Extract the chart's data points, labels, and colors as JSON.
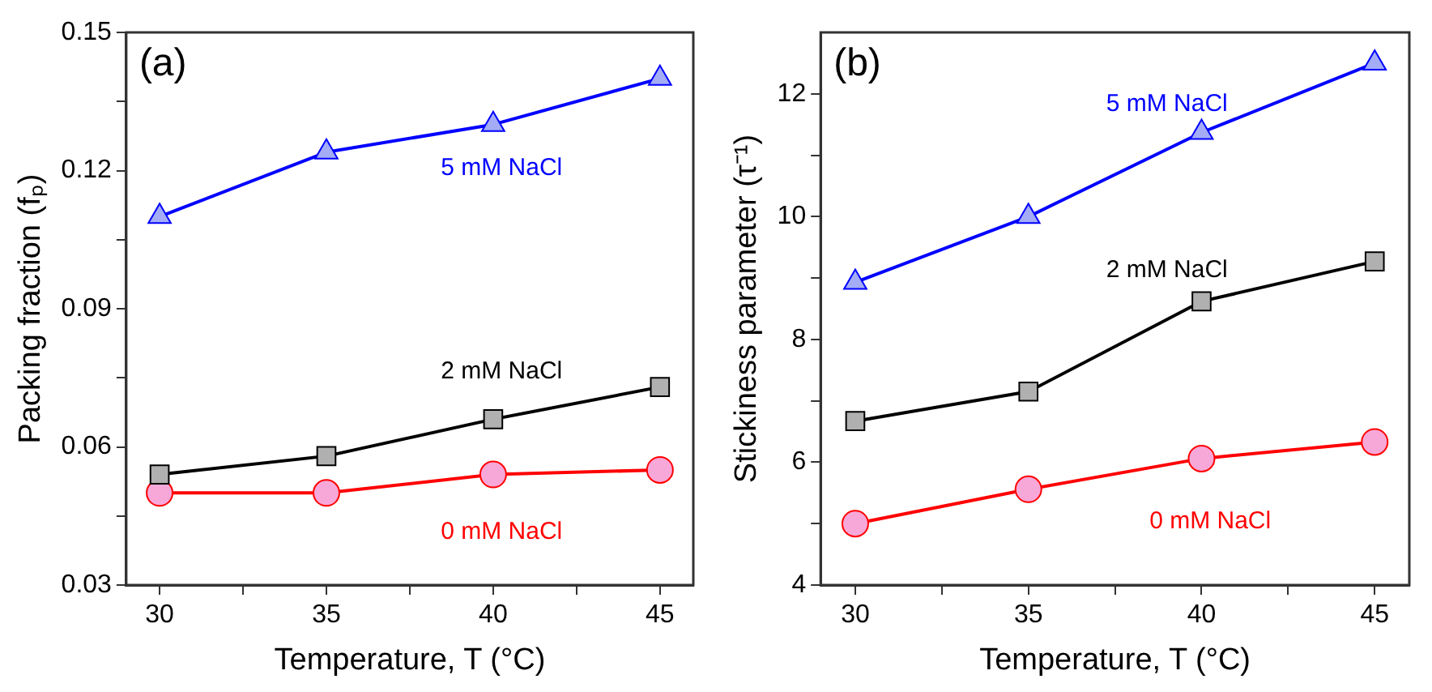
{
  "chart_data": [
    {
      "type": "line",
      "xlabel": "Temperature, T (°C)",
      "ylabel": "Packing fraction (fₚ)",
      "annotations": [
        "(a)"
      ],
      "legend": false,
      "grid": false,
      "x": [
        30,
        35,
        40,
        45
      ],
      "xlim": [
        29,
        46
      ],
      "xticks": [
        30,
        {
          "value": 32.5,
          "label": null
        },
        35,
        {
          "value": 37.5,
          "label": null
        },
        40,
        {
          "value": 42.5,
          "label": null
        },
        45
      ],
      "ylim": [
        0.03,
        0.15
      ],
      "yticks": [
        {
          "value": 0.03,
          "label": "0.03"
        },
        {
          "value": 0.045,
          "label": null
        },
        {
          "value": 0.06,
          "label": "0.06"
        },
        {
          "value": 0.075,
          "label": null
        },
        {
          "value": 0.09,
          "label": "0.09"
        },
        {
          "value": 0.105,
          "label": null
        },
        {
          "value": 0.12,
          "label": "0.12"
        },
        {
          "value": 0.135,
          "label": null
        },
        {
          "value": 0.15,
          "label": "0.15"
        }
      ],
      "series": [
        {
          "name": "5 mM NaCl",
          "color": "#0000ff",
          "marker": "triangle",
          "values": [
            0.11,
            0.124,
            0.13,
            0.14
          ]
        },
        {
          "name": "2 mM NaCl",
          "color": "#000000",
          "marker": "square",
          "values": [
            0.054,
            0.058,
            0.066,
            0.073
          ]
        },
        {
          "name": "0 mM NaCl",
          "color": "#ff0000",
          "marker": "circle",
          "values": [
            0.05,
            0.05,
            0.054,
            0.055
          ]
        }
      ]
    },
    {
      "type": "line",
      "xlabel": "Temperature, T (°C)",
      "ylabel": "Stickiness parameter (τ⁻¹)",
      "annotations": [
        "(b)"
      ],
      "legend": false,
      "grid": false,
      "x": [
        30,
        35,
        40,
        45
      ],
      "xlim": [
        29,
        46
      ],
      "xticks": [
        30,
        {
          "value": 32.5,
          "label": null
        },
        35,
        {
          "value": 37.5,
          "label": null
        },
        40,
        {
          "value": 42.5,
          "label": null
        },
        45
      ],
      "ylim": [
        4,
        13
      ],
      "yticks": [
        4,
        {
          "value": 5,
          "label": null
        },
        6,
        {
          "value": 7,
          "label": null
        },
        8,
        {
          "value": 9,
          "label": null
        },
        10,
        {
          "value": 11,
          "label": null
        },
        12
      ],
      "series": [
        {
          "name": "5 mM NaCl",
          "color": "#0000ff",
          "marker": "triangle",
          "values": [
            8.93,
            10.0,
            11.37,
            12.5
          ]
        },
        {
          "name": "2 mM NaCl",
          "color": "#000000",
          "marker": "square",
          "values": [
            6.67,
            7.15,
            8.62,
            9.27
          ]
        },
        {
          "name": "0 mM NaCl",
          "color": "#ff0000",
          "marker": "circle",
          "values": [
            5.0,
            5.56,
            6.06,
            6.33
          ]
        }
      ]
    }
  ]
}
